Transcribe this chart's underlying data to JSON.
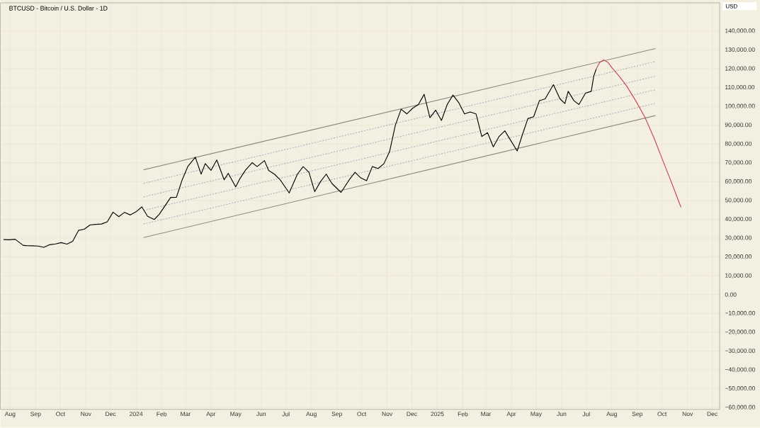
{
  "chart_data": {
    "type": "line",
    "title": "BTCUSD - Bitcoin / U.S. Dollar - 1D",
    "ylabel": "USD",
    "grid": true,
    "xlim": [
      "2023-07-20",
      "2025-12-10"
    ],
    "ylim": [
      -61000,
      155000
    ],
    "xticks": [
      {
        "value": "2023-08-01",
        "label": "Aug"
      },
      {
        "value": "2023-09-01",
        "label": "Sep"
      },
      {
        "value": "2023-10-01",
        "label": "Oct"
      },
      {
        "value": "2023-11-01",
        "label": "Nov"
      },
      {
        "value": "2023-12-01",
        "label": "Dec"
      },
      {
        "value": "2024-01-01",
        "label": "2024"
      },
      {
        "value": "2024-02-01",
        "label": "Feb"
      },
      {
        "value": "2024-03-01",
        "label": "Mar"
      },
      {
        "value": "2024-04-01",
        "label": "Apr"
      },
      {
        "value": "2024-05-01",
        "label": "May"
      },
      {
        "value": "2024-06-01",
        "label": "Jun"
      },
      {
        "value": "2024-07-01",
        "label": "Jul"
      },
      {
        "value": "2024-08-01",
        "label": "Aug"
      },
      {
        "value": "2024-09-01",
        "label": "Sep"
      },
      {
        "value": "2024-10-01",
        "label": "Oct"
      },
      {
        "value": "2024-11-01",
        "label": "Nov"
      },
      {
        "value": "2024-12-01",
        "label": "Dec"
      },
      {
        "value": "2025-01-01",
        "label": "2025"
      },
      {
        "value": "2025-02-01",
        "label": "Feb"
      },
      {
        "value": "2025-03-01",
        "label": "Mar"
      },
      {
        "value": "2025-04-01",
        "label": "Apr"
      },
      {
        "value": "2025-05-01",
        "label": "May"
      },
      {
        "value": "2025-06-01",
        "label": "Jun"
      },
      {
        "value": "2025-07-01",
        "label": "Jul"
      },
      {
        "value": "2025-08-01",
        "label": "Aug"
      },
      {
        "value": "2025-09-01",
        "label": "Sep"
      },
      {
        "value": "2025-10-01",
        "label": "Oct"
      },
      {
        "value": "2025-11-01",
        "label": "Nov"
      },
      {
        "value": "2025-12-01",
        "label": "Dec"
      }
    ],
    "yticks": [
      {
        "value": 140000,
        "label": "140,000.00"
      },
      {
        "value": 130000,
        "label": "130,000.00"
      },
      {
        "value": 120000,
        "label": "120,000.00"
      },
      {
        "value": 110000,
        "label": "110,000.00"
      },
      {
        "value": 100000,
        "label": "100,000.00"
      },
      {
        "value": 90000,
        "label": "90,000.00"
      },
      {
        "value": 80000,
        "label": "80,000.00"
      },
      {
        "value": 70000,
        "label": "70,000.00"
      },
      {
        "value": 60000,
        "label": "60,000.00"
      },
      {
        "value": 50000,
        "label": "50,000.00"
      },
      {
        "value": 40000,
        "label": "40,000.00"
      },
      {
        "value": 30000,
        "label": "30,000.00"
      },
      {
        "value": 20000,
        "label": "20,000.00"
      },
      {
        "value": 10000,
        "label": "10,000.00"
      },
      {
        "value": 0,
        "label": "0.00"
      },
      {
        "value": -10000,
        "label": "−10,000.00"
      },
      {
        "value": -20000,
        "label": "−20,000.00"
      },
      {
        "value": -30000,
        "label": "−30,000.00"
      },
      {
        "value": -40000,
        "label": "−40,000.00"
      },
      {
        "value": -50000,
        "label": "−50,000.00"
      },
      {
        "value": -60000,
        "label": "−60,000.00"
      }
    ],
    "series": [
      {
        "color": "#8c8a7e",
        "line_style": "solid",
        "x": [
          "2024-01-10",
          "2025-09-23"
        ],
        "values": [
          66300,
          130700
        ]
      },
      {
        "color": "#8c8a7e",
        "line_style": "solid",
        "x": [
          "2024-01-10",
          "2025-09-23"
        ],
        "values": [
          30300,
          95100
        ]
      },
      {
        "color": "#b3b1c2",
        "line_style": "dashed",
        "x": [
          "2024-01-10",
          "2025-09-23"
        ],
        "values": [
          59100,
          123800
        ]
      },
      {
        "color": "#b3b1c2",
        "line_style": "dashed",
        "x": [
          "2024-01-10",
          "2025-09-23"
        ],
        "values": [
          51900,
          116000
        ]
      },
      {
        "color": "#b3b1c2",
        "line_style": "dashed",
        "x": [
          "2024-01-10",
          "2025-09-23"
        ],
        "values": [
          44700,
          108800
        ]
      },
      {
        "color": "#b3b1c2",
        "line_style": "dashed",
        "x": [
          "2024-01-10",
          "2025-09-23"
        ],
        "values": [
          37500,
          101600
        ]
      },
      {
        "color": "#000000",
        "line_style": "solid",
        "x": [
          "2023-07-24",
          "2023-07-31",
          "2023-08-07",
          "2023-08-17",
          "2023-08-21",
          "2023-08-28",
          "2023-09-04",
          "2023-09-11",
          "2023-09-18",
          "2023-09-25",
          "2023-10-02",
          "2023-10-09",
          "2023-10-16",
          "2023-10-23",
          "2023-10-30",
          "2023-11-06",
          "2023-11-13",
          "2023-11-20",
          "2023-11-27",
          "2023-12-04",
          "2023-12-11",
          "2023-12-18",
          "2023-12-25",
          "2024-01-01",
          "2024-01-08",
          "2024-01-15",
          "2024-01-23",
          "2024-01-29",
          "2024-02-05",
          "2024-02-12",
          "2024-02-19",
          "2024-02-26",
          "2024-03-04",
          "2024-03-13",
          "2024-03-20",
          "2024-03-25",
          "2024-04-01",
          "2024-04-08",
          "2024-04-17",
          "2024-04-22",
          "2024-05-01",
          "2024-05-06",
          "2024-05-13",
          "2024-05-21",
          "2024-05-27",
          "2024-06-05",
          "2024-06-10",
          "2024-06-17",
          "2024-06-24",
          "2024-07-05",
          "2024-07-15",
          "2024-07-22",
          "2024-07-29",
          "2024-08-05",
          "2024-08-12",
          "2024-08-19",
          "2024-08-26",
          "2024-09-06",
          "2024-09-16",
          "2024-09-23",
          "2024-09-30",
          "2024-10-07",
          "2024-10-14",
          "2024-10-21",
          "2024-10-28",
          "2024-11-04",
          "2024-11-11",
          "2024-11-18",
          "2024-11-25",
          "2024-12-02",
          "2024-12-09",
          "2024-12-16",
          "2024-12-23",
          "2024-12-30",
          "2025-01-06",
          "2025-01-13",
          "2025-01-20",
          "2025-01-27",
          "2025-02-03",
          "2025-02-10",
          "2025-02-17",
          "2025-02-24",
          "2025-03-03",
          "2025-03-10",
          "2025-03-17",
          "2025-03-24",
          "2025-03-31",
          "2025-04-08",
          "2025-04-14",
          "2025-04-21",
          "2025-04-28",
          "2025-05-05",
          "2025-05-12",
          "2025-05-22",
          "2025-05-30",
          "2025-06-05",
          "2025-06-09",
          "2025-06-16",
          "2025-06-22",
          "2025-06-30",
          "2025-07-07",
          "2025-07-10",
          "2025-07-13"
        ],
        "values": [
          29200,
          29100,
          29400,
          26100,
          26000,
          25900,
          25800,
          25100,
          26500,
          26900,
          27600,
          26800,
          28300,
          34100,
          34700,
          37000,
          37300,
          37500,
          38700,
          43800,
          41400,
          43700,
          42300,
          44000,
          46600,
          41600,
          39900,
          42600,
          47100,
          51600,
          51700,
          61000,
          68200,
          73000,
          64000,
          69600,
          66000,
          71500,
          61000,
          64400,
          57200,
          61500,
          66200,
          70100,
          68000,
          71200,
          66000,
          64000,
          61000,
          54000,
          64000,
          68000,
          65000,
          54700,
          60000,
          64000,
          59000,
          54300,
          61000,
          65000,
          62000,
          60500,
          68000,
          67000,
          69500,
          76000,
          90000,
          98500,
          96000,
          99000,
          101000,
          106400,
          94000,
          98000,
          92500,
          101000,
          106000,
          102000,
          96000,
          97000,
          96000,
          84000,
          86000,
          78500,
          84000,
          87000,
          82000,
          76300,
          84500,
          93500,
          94500,
          103000,
          104000,
          111500,
          104000,
          101500,
          108000,
          103000,
          101000,
          107000,
          108000,
          116000,
          119800
        ]
      },
      {
        "color": "#c8474d",
        "line_style": "solid",
        "x": [
          "2025-07-13",
          "2025-07-17",
          "2025-07-22",
          "2025-07-27",
          "2025-08-01",
          "2025-08-10",
          "2025-08-19",
          "2025-08-30",
          "2025-09-10",
          "2025-09-21",
          "2025-10-02",
          "2025-10-13",
          "2025-10-24"
        ],
        "values": [
          119800,
          123200,
          124700,
          123500,
          120600,
          116000,
          110800,
          103000,
          94400,
          83500,
          71200,
          59000,
          46400
        ]
      }
    ]
  }
}
